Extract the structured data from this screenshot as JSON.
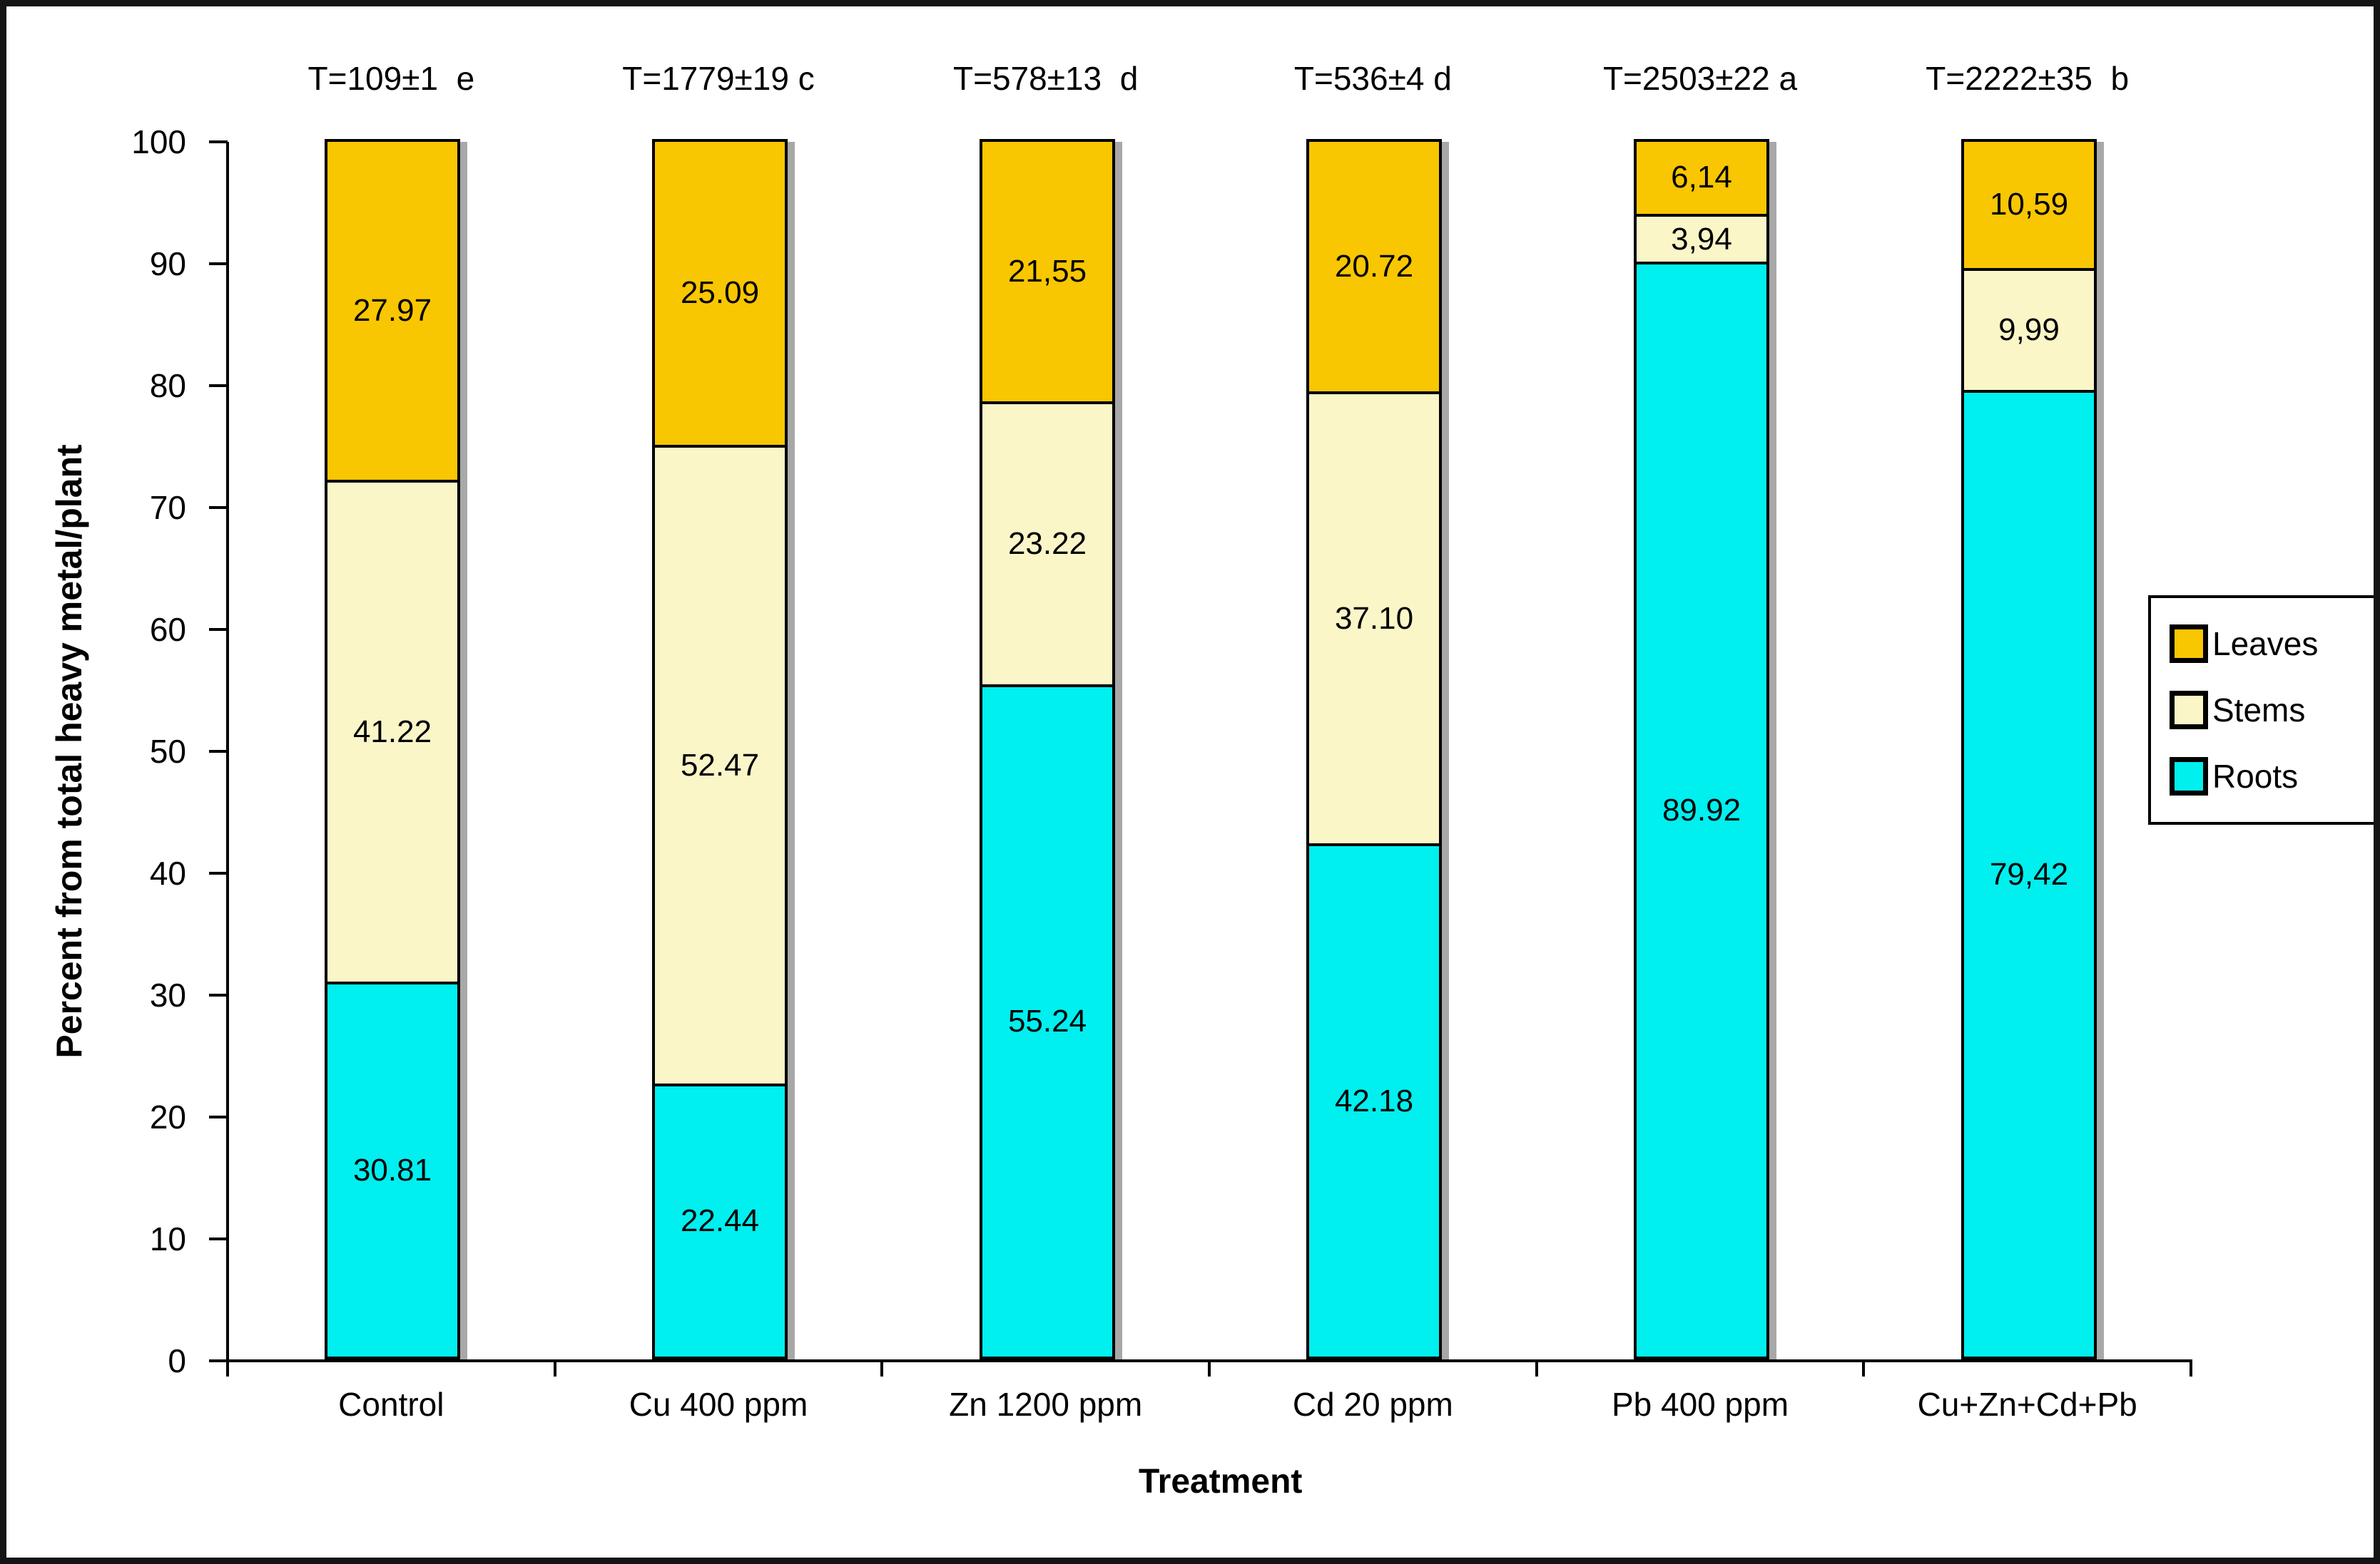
{
  "figure": {
    "y_axis_title": "Percent from total heavy metal/plant",
    "x_axis_title": "Treatment"
  },
  "y_axis": {
    "ticks": [
      "100",
      "90",
      "80",
      "70",
      "60",
      "50",
      "40",
      "30",
      "20",
      "10",
      "0"
    ]
  },
  "annotations": [
    "T=109±1  e",
    "T=1779±19 c",
    "T=578±13  d",
    "T=536±4 d",
    "T=2503±22 a",
    "T=2222±35  b"
  ],
  "legend": {
    "items": [
      {
        "label": "Leaves",
        "color": "#f9c602"
      },
      {
        "label": "Stems",
        "color": "#faf6c8"
      },
      {
        "label": "Roots",
        "color": "#00efef"
      }
    ]
  },
  "chart_data": {
    "type": "bar",
    "stacked": true,
    "categories": [
      "Control",
      "Cu 400 ppm",
      "Zn 1200 ppm",
      "Cd 20 ppm",
      "Pb 400 ppm",
      "Cu+Zn+Cd+Pb"
    ],
    "series": [
      {
        "name": "Roots",
        "color": "#00efef",
        "values": [
          30.81,
          22.44,
          55.24,
          42.18,
          89.92,
          79.42
        ],
        "labels": [
          "30.81",
          "22.44",
          "55.24",
          "42.18",
          "89.92",
          "79,42"
        ]
      },
      {
        "name": "Stems",
        "color": "#faf6c8",
        "values": [
          41.22,
          52.47,
          23.22,
          37.1,
          3.94,
          9.99
        ],
        "labels": [
          "41.22",
          "52.47",
          "23.22",
          "37.10",
          "3,94",
          "9,99"
        ]
      },
      {
        "name": "Leaves",
        "color": "#f9c602",
        "values": [
          27.97,
          25.09,
          21.55,
          20.72,
          6.14,
          10.59
        ],
        "labels": [
          "27.97",
          "25.09",
          "21,55",
          "20.72",
          "6,14",
          "10,59"
        ]
      }
    ],
    "totals": [
      "T=109±1  e",
      "T=1779±19 c",
      "T=578±13  d",
      "T=536±4 d",
      "T=2503±22 a",
      "T=2222±35  b"
    ],
    "ylim": [
      0,
      100
    ],
    "ylabel": "Percent from total heavy metal/plant",
    "xlabel": "Treatment",
    "legend_position": "right",
    "grid": false
  }
}
